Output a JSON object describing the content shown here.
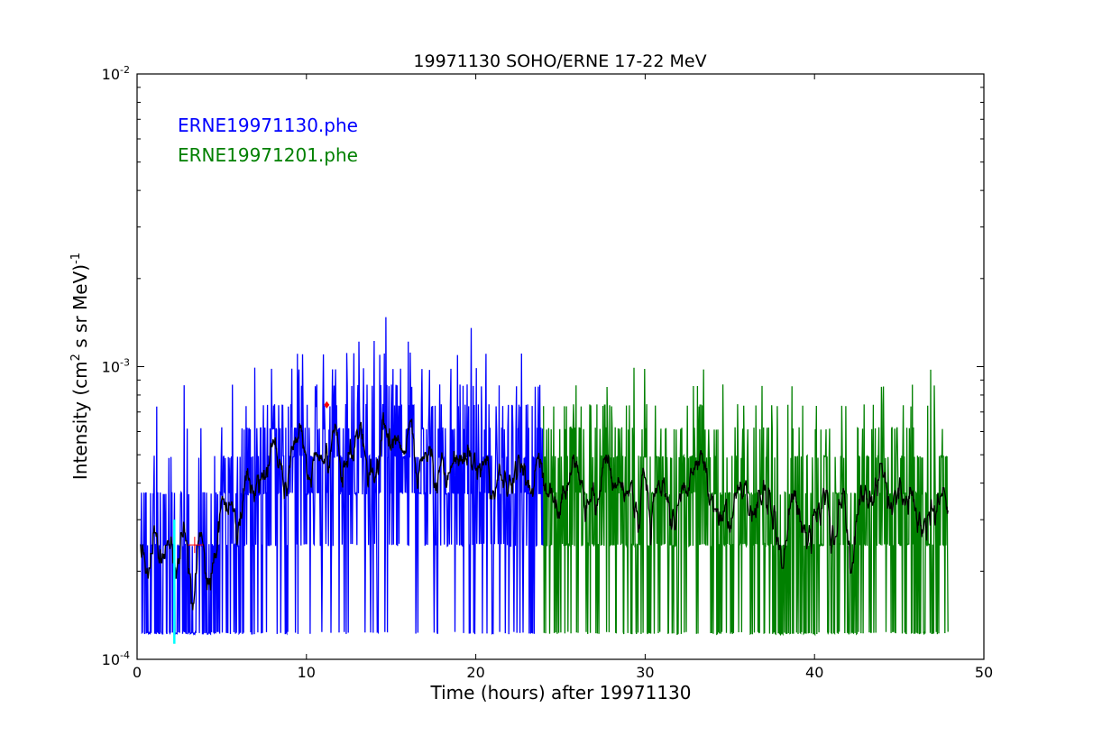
{
  "chart_data": {
    "type": "line",
    "title": "19971130 SOHO/ERNE 17-22 MeV",
    "xlabel": "Time (hours) after 19971130",
    "ylabel_main": "Intensity (cm",
    "ylabel_sup1": "2",
    "ylabel_rest": " s sr MeV)",
    "ylabel_sup2": "-1",
    "xlim": [
      0,
      50
    ],
    "ylim": [
      0.0001,
      0.01
    ],
    "yscale": "log",
    "xticks": [
      0,
      10,
      20,
      30,
      40,
      50
    ],
    "xtick_labels": [
      "0",
      "10",
      "20",
      "30",
      "40",
      "50"
    ],
    "yticks": [
      0.0001,
      0.001,
      0.01
    ],
    "ytick_labels": [
      {
        "base": "10",
        "exp": "-4"
      },
      {
        "base": "10",
        "exp": "-3"
      },
      {
        "base": "10",
        "exp": "-2"
      }
    ],
    "count_unit": 0.000123,
    "legend": [
      {
        "label": "ERNE19971130.phe",
        "color": "#0000ff"
      },
      {
        "label": "ERNE19971201.phe",
        "color": "#008000"
      }
    ],
    "legend_placement": "top-left",
    "series": [
      {
        "name": "ERNE19971130.phe",
        "color": "#0000ff",
        "x_range": [
          0.2,
          24.0
        ],
        "step": 0.03,
        "mean_profile": [
          [
            0.2,
            0.0002
          ],
          [
            5.0,
            0.00021
          ],
          [
            6.0,
            0.00038
          ],
          [
            7.5,
            0.00042
          ],
          [
            8.0,
            0.00052
          ],
          [
            12,
            0.00052
          ],
          [
            17,
            0.00048
          ],
          [
            24,
            0.00042
          ]
        ]
      },
      {
        "name": "ERNE19971201.phe",
        "color": "#008000",
        "x_range": [
          24.0,
          47.9
        ],
        "step": 0.03,
        "mean_profile": [
          [
            24,
            0.0004
          ],
          [
            30,
            0.00037
          ],
          [
            40,
            0.00032
          ],
          [
            47.9,
            0.00031
          ]
        ]
      },
      {
        "name": "smoothed",
        "color": "#000000",
        "window": 7
      }
    ],
    "annotations": [
      {
        "type": "errorbar",
        "color": "#ff0000",
        "x": 3.4,
        "xerr": [
          3.0,
          3.9
        ],
        "y": 0.000246
      },
      {
        "type": "marker",
        "color": "#ff0000",
        "x": 11.2,
        "y": 0.00074
      },
      {
        "type": "vline",
        "color": "#00ffff",
        "x": 2.2,
        "y_range": [
          0.000113,
          0.0003
        ]
      }
    ]
  }
}
